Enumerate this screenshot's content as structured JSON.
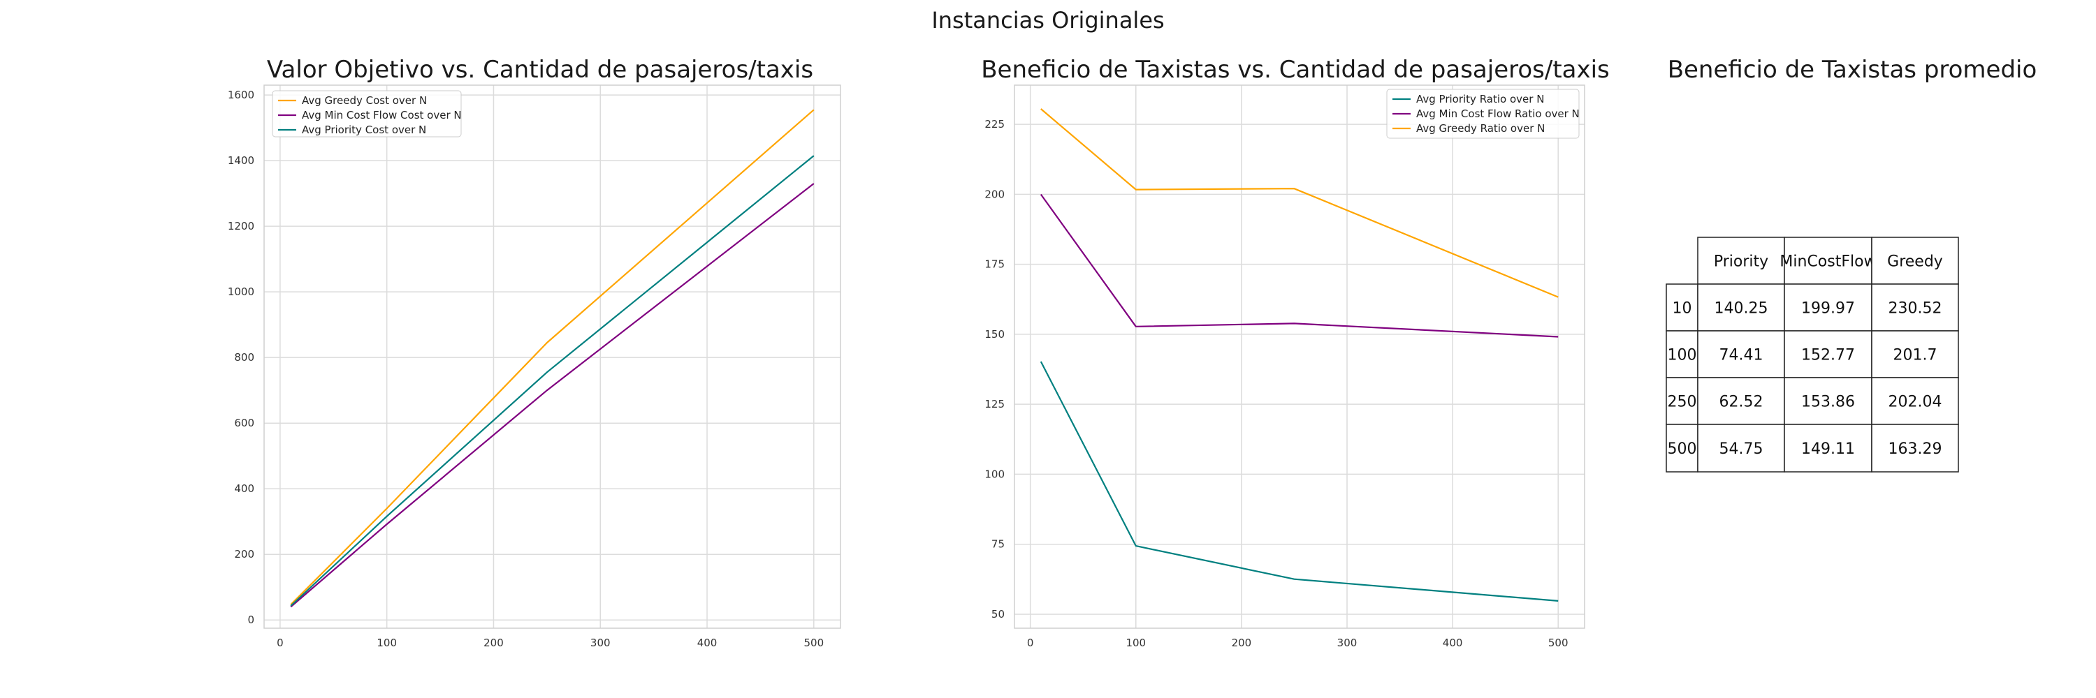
{
  "figure": {
    "suptitle": "Instancias Originales"
  },
  "chart_data": [
    {
      "type": "line",
      "title": "Valor Objetivo vs. Cantidad de pasajeros/taxis",
      "xlabel": "",
      "ylabel": "",
      "x": [
        10,
        100,
        250,
        500
      ],
      "xlim": [
        -15,
        525
      ],
      "ylim": [
        -25,
        1630
      ],
      "xticks": [
        0,
        100,
        200,
        300,
        400,
        500
      ],
      "yticks": [
        0,
        200,
        400,
        600,
        800,
        1000,
        1200,
        1400,
        1600
      ],
      "grid": true,
      "legend_position": "top-left",
      "series": [
        {
          "name": "Avg Greedy Cost over N",
          "color": "#FFA500",
          "values": [
            47,
            340,
            845,
            1555
          ]
        },
        {
          "name": "Avg Min Cost Flow Cost over N",
          "color": "#800080",
          "values": [
            40,
            292,
            700,
            1330
          ]
        },
        {
          "name": "Avg Priority Cost over N",
          "color": "#008080",
          "values": [
            43,
            316,
            755,
            1415
          ]
        }
      ]
    },
    {
      "type": "line",
      "title": "Beneficio de Taxistas vs. Cantidad de pasajeros/taxis",
      "xlabel": "",
      "ylabel": "",
      "x": [
        10,
        100,
        250,
        500
      ],
      "xlim": [
        -15,
        525
      ],
      "ylim": [
        45,
        239
      ],
      "xticks": [
        0,
        100,
        200,
        300,
        400,
        500
      ],
      "yticks": [
        50,
        75,
        100,
        125,
        150,
        175,
        200,
        225
      ],
      "grid": true,
      "legend_position": "top-right",
      "series": [
        {
          "name": "Avg Priority Ratio over N",
          "color": "#008080",
          "values": [
            140.25,
            74.41,
            62.52,
            54.75
          ]
        },
        {
          "name": "Avg Min Cost Flow Ratio over N",
          "color": "#800080",
          "values": [
            199.97,
            152.77,
            153.86,
            149.11
          ]
        },
        {
          "name": "Avg Greedy Ratio over N",
          "color": "#FFA500",
          "values": [
            230.52,
            201.7,
            202.04,
            163.29
          ]
        }
      ]
    },
    {
      "type": "table",
      "title": "Beneficio de Taxistas promedio",
      "columns": [
        "Priority",
        "MinCostFlow",
        "Greedy"
      ],
      "rows": [
        {
          "label": "10",
          "values": [
            "140.25",
            "199.97",
            "230.52"
          ]
        },
        {
          "label": "100",
          "values": [
            "74.41",
            "152.77",
            "201.7"
          ]
        },
        {
          "label": "250",
          "values": [
            "62.52",
            "153.86",
            "202.04"
          ]
        },
        {
          "label": "500",
          "values": [
            "54.75",
            "149.11",
            "163.29"
          ]
        }
      ]
    }
  ]
}
